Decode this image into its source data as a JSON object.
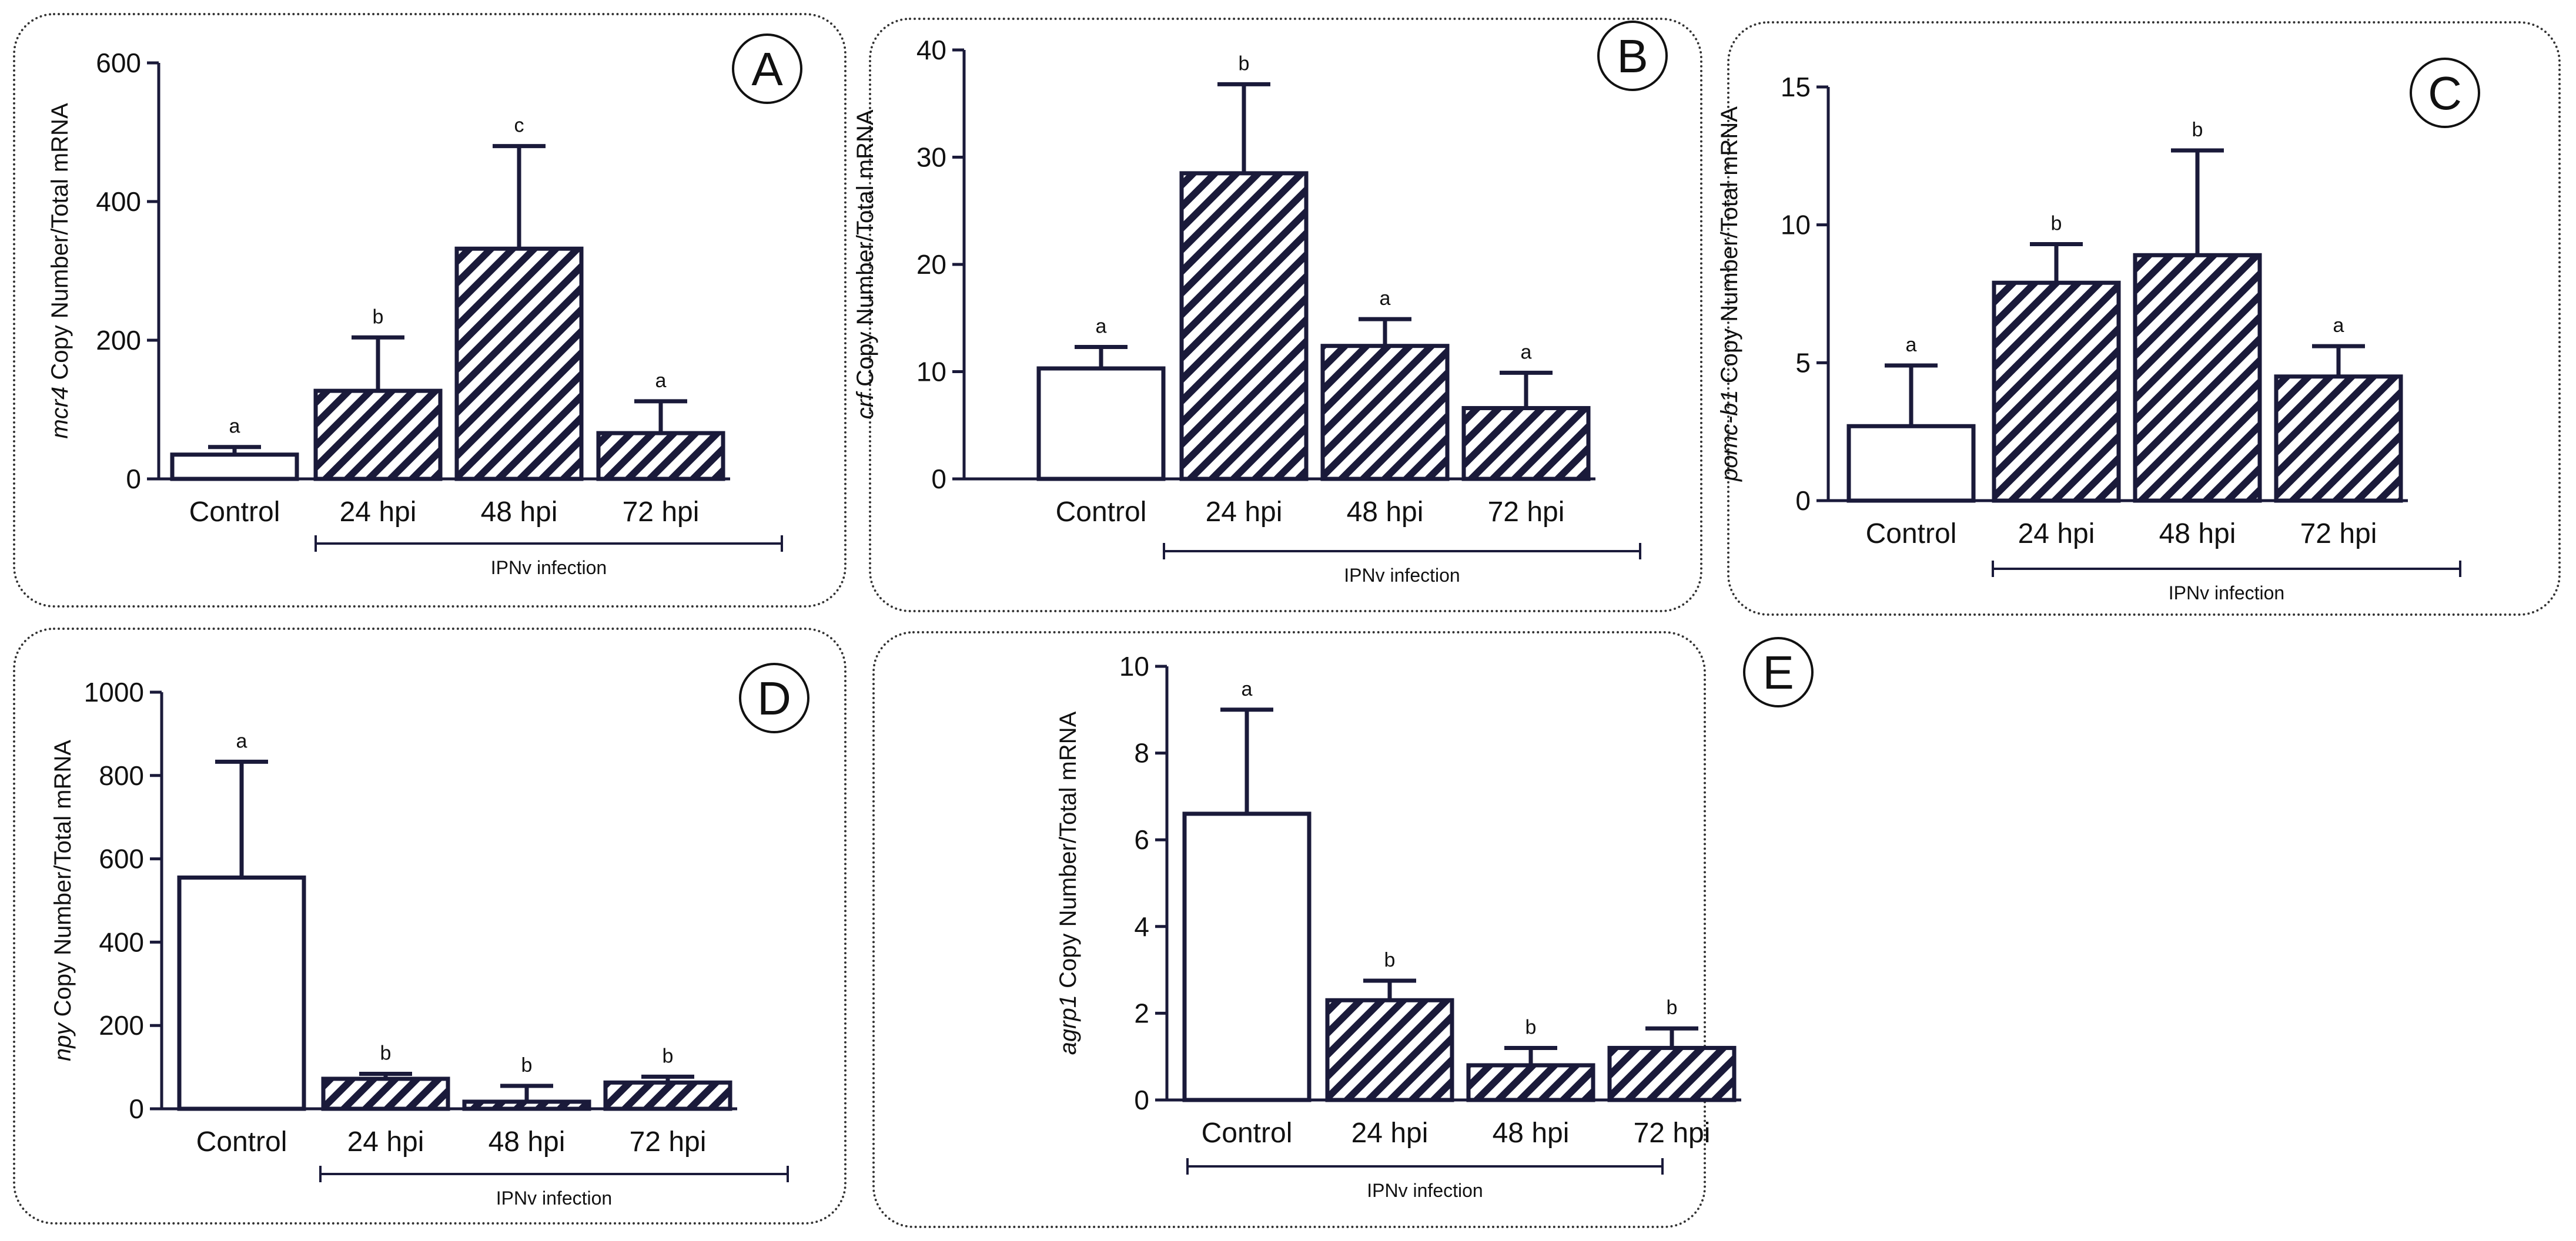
{
  "colors": {
    "axis": "#1a1a3a",
    "bar_fill_control": "#ffffff",
    "hatch": "#1a1a3a",
    "border": "#333333"
  },
  "chart_data": [
    {
      "panel": "A",
      "type": "bar",
      "categories": [
        "Control",
        "24 hpi",
        "48 hpi",
        "72 hpi"
      ],
      "values": [
        35,
        127,
        332,
        66
      ],
      "errors": [
        11,
        77,
        148,
        46
      ],
      "significance": [
        "a",
        "b",
        "c",
        "a"
      ],
      "ylabel_gene": "mcr4",
      "ylabel_rest": " Copy Number/Total mRNA",
      "ylim": [
        0,
        600
      ],
      "yticks": [
        0,
        200,
        400,
        600
      ],
      "group_label": "IPNv infection"
    },
    {
      "panel": "B",
      "type": "bar",
      "categories": [
        "Control",
        "24 hpi",
        "48 hpi",
        "72 hpi"
      ],
      "values": [
        10.3,
        28.5,
        12.4,
        6.6
      ],
      "errors": [
        2.0,
        8.3,
        2.5,
        3.3
      ],
      "significance": [
        "a",
        "b",
        "a",
        "a"
      ],
      "ylabel_gene": "crf",
      "ylabel_rest": " Copy Number/Total mRNA",
      "ylim": [
        0,
        40
      ],
      "yticks": [
        0,
        10,
        20,
        30,
        40
      ],
      "group_label": "IPNv infection"
    },
    {
      "panel": "C",
      "type": "bar",
      "categories": [
        "Control",
        "24 hpi",
        "48 hpi",
        "72 hpi"
      ],
      "values": [
        2.7,
        7.9,
        8.9,
        4.5
      ],
      "errors": [
        2.2,
        1.4,
        3.8,
        1.1
      ],
      "significance": [
        "a",
        "b",
        "b",
        "a"
      ],
      "ylabel_gene": "pomc-b1",
      "ylabel_rest": " Copy Number/Total mRNA",
      "ylim": [
        0,
        15
      ],
      "yticks": [
        0,
        5,
        10,
        15
      ],
      "group_label": "IPNv infection"
    },
    {
      "panel": "D",
      "type": "bar",
      "categories": [
        "Control",
        "24 hpi",
        "48 hpi",
        "72 hpi"
      ],
      "values": [
        555,
        72,
        17,
        63
      ],
      "errors": [
        278,
        12,
        38,
        14
      ],
      "significance": [
        "a",
        "b",
        "b",
        "b"
      ],
      "ylabel_gene": "npy",
      "ylabel_rest": " Copy Number/Total mRNA",
      "ylim": [
        0,
        1000
      ],
      "yticks": [
        0,
        200,
        400,
        600,
        800,
        1000
      ],
      "group_label": "IPNv infection"
    },
    {
      "panel": "E",
      "type": "bar",
      "categories": [
        "Control",
        "24 hpi",
        "48 hpi",
        "72 hpi"
      ],
      "values": [
        6.6,
        2.3,
        0.8,
        1.2
      ],
      "errors": [
        2.4,
        0.45,
        0.4,
        0.45
      ],
      "significance": [
        "a",
        "b",
        "b",
        "b"
      ],
      "ylabel_gene": "agrp1",
      "ylabel_rest": " Copy Number/Total mRNA",
      "ylim": [
        0,
        10
      ],
      "yticks": [
        0,
        2,
        4,
        6,
        8,
        10
      ],
      "group_label": "IPNv infection"
    }
  ]
}
